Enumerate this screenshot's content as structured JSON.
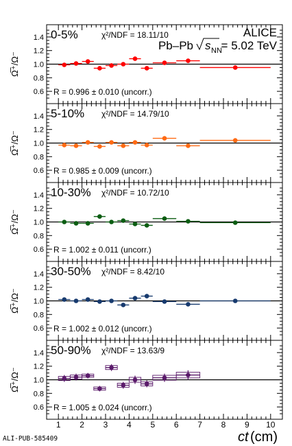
{
  "figure": {
    "experiment_label": "ALICE",
    "system_label": "Pb–Pb",
    "energy_label": "= 5.02 TeV",
    "sqrt_label": "s",
    "sqrt_sub": "NN",
    "pub_id": "ALI-PUB-585409",
    "xaxis_title_italic": "ct",
    "xaxis_title_unit": " (cm)",
    "yaxis_title": "Ω̅⁺/Ω⁻",
    "xticks": [
      "1",
      "2",
      "3",
      "4",
      "5",
      "6",
      "7",
      "8",
      "9",
      "10"
    ],
    "yticks": [
      "0.6",
      "0.8",
      "1.0",
      "1.2",
      "1.4"
    ],
    "colors": {
      "0-5%": "#ff0000",
      "5-10%": "#ff6a13",
      "10-30%": "#0b5d12",
      "30-50%": "#173a6e",
      "50-90%": "#5a1a6a"
    }
  },
  "chart_data": [
    {
      "type": "scatter",
      "panel": "0-5%",
      "centrality": "0-5%",
      "chi2_label": "χ²/NDF = 18.11/10",
      "r_label": "R = 0.996 ± 0.010 (uncorr.)",
      "color": "#ff0000",
      "xlim": [
        0.5,
        10.5
      ],
      "ylim": [
        0.5,
        1.5
      ],
      "reference_line": 1.0,
      "points": [
        {
          "x": 1.25,
          "xerr": 0.25,
          "y": 0.99,
          "yerr": 0.02
        },
        {
          "x": 1.75,
          "xerr": 0.25,
          "y": 1.01,
          "yerr": 0.02
        },
        {
          "x": 2.25,
          "xerr": 0.25,
          "y": 1.04,
          "yerr": 0.02
        },
        {
          "x": 2.75,
          "xerr": 0.25,
          "y": 0.94,
          "yerr": 0.02
        },
        {
          "x": 3.25,
          "xerr": 0.25,
          "y": 0.98,
          "yerr": 0.02
        },
        {
          "x": 3.75,
          "xerr": 0.25,
          "y": 1.0,
          "yerr": 0.02
        },
        {
          "x": 4.25,
          "xerr": 0.25,
          "y": 1.08,
          "yerr": 0.02
        },
        {
          "x": 4.75,
          "xerr": 0.25,
          "y": 0.94,
          "yerr": 0.02
        },
        {
          "x": 5.5,
          "xerr": 0.5,
          "y": 1.02,
          "yerr": 0.02
        },
        {
          "x": 6.5,
          "xerr": 0.5,
          "y": 1.05,
          "yerr": 0.03
        },
        {
          "x": 8.5,
          "xerr": 1.5,
          "y": 0.95,
          "yerr": 0.03
        }
      ]
    },
    {
      "type": "scatter",
      "panel": "5-10%",
      "centrality": "5-10%",
      "chi2_label": "χ²/NDF = 14.79/10",
      "r_label": "R = 0.985 ± 0.009 (uncorr.)",
      "color": "#ff6a13",
      "xlim": [
        0.5,
        10.5
      ],
      "ylim": [
        0.5,
        1.5
      ],
      "reference_line": 1.0,
      "points": [
        {
          "x": 1.25,
          "xerr": 0.25,
          "y": 0.97,
          "yerr": 0.02
        },
        {
          "x": 1.75,
          "xerr": 0.25,
          "y": 0.96,
          "yerr": 0.02
        },
        {
          "x": 2.25,
          "xerr": 0.25,
          "y": 1.01,
          "yerr": 0.02
        },
        {
          "x": 2.75,
          "xerr": 0.25,
          "y": 0.95,
          "yerr": 0.02
        },
        {
          "x": 3.25,
          "xerr": 0.25,
          "y": 1.01,
          "yerr": 0.02
        },
        {
          "x": 3.75,
          "xerr": 0.25,
          "y": 0.96,
          "yerr": 0.02
        },
        {
          "x": 4.25,
          "xerr": 0.25,
          "y": 1.01,
          "yerr": 0.02
        },
        {
          "x": 4.75,
          "xerr": 0.25,
          "y": 0.97,
          "yerr": 0.02
        },
        {
          "x": 5.5,
          "xerr": 0.5,
          "y": 1.07,
          "yerr": 0.02
        },
        {
          "x": 6.5,
          "xerr": 0.5,
          "y": 0.96,
          "yerr": 0.02
        },
        {
          "x": 8.5,
          "xerr": 1.5,
          "y": 1.04,
          "yerr": 0.03
        }
      ]
    },
    {
      "type": "scatter",
      "panel": "10-30%",
      "centrality": "10-30%",
      "chi2_label": "χ²/NDF = 10.72/10",
      "r_label": "R = 1.002 ± 0.011 (uncorr.)",
      "color": "#0b5d12",
      "xlim": [
        0.5,
        10.5
      ],
      "ylim": [
        0.5,
        1.5
      ],
      "reference_line": 1.0,
      "points": [
        {
          "x": 1.25,
          "xerr": 0.25,
          "y": 1.0,
          "yerr": 0.02
        },
        {
          "x": 1.75,
          "xerr": 0.25,
          "y": 0.98,
          "yerr": 0.02
        },
        {
          "x": 2.25,
          "xerr": 0.25,
          "y": 0.98,
          "yerr": 0.02
        },
        {
          "x": 2.75,
          "xerr": 0.25,
          "y": 1.08,
          "yerr": 0.02
        },
        {
          "x": 3.25,
          "xerr": 0.25,
          "y": 1.0,
          "yerr": 0.02
        },
        {
          "x": 3.75,
          "xerr": 0.25,
          "y": 1.02,
          "yerr": 0.02
        },
        {
          "x": 4.25,
          "xerr": 0.25,
          "y": 0.97,
          "yerr": 0.02
        },
        {
          "x": 4.75,
          "xerr": 0.25,
          "y": 0.95,
          "yerr": 0.02
        },
        {
          "x": 5.5,
          "xerr": 0.5,
          "y": 1.05,
          "yerr": 0.02
        },
        {
          "x": 6.5,
          "xerr": 0.5,
          "y": 1.01,
          "yerr": 0.03
        },
        {
          "x": 8.5,
          "xerr": 1.5,
          "y": 0.99,
          "yerr": 0.03
        }
      ]
    },
    {
      "type": "scatter",
      "panel": "30-50%",
      "centrality": "30-50%",
      "chi2_label": "χ²/NDF = 8.42/10",
      "r_label": "R = 1.002 ± 0.012 (uncorr.)",
      "color": "#173a6e",
      "xlim": [
        0.5,
        10.5
      ],
      "ylim": [
        0.5,
        1.5
      ],
      "reference_line": 1.0,
      "points": [
        {
          "x": 1.25,
          "xerr": 0.25,
          "y": 1.02,
          "yerr": 0.02
        },
        {
          "x": 1.75,
          "xerr": 0.25,
          "y": 1.0,
          "yerr": 0.02
        },
        {
          "x": 2.25,
          "xerr": 0.25,
          "y": 1.02,
          "yerr": 0.02
        },
        {
          "x": 2.75,
          "xerr": 0.25,
          "y": 0.99,
          "yerr": 0.02
        },
        {
          "x": 3.25,
          "xerr": 0.25,
          "y": 1.0,
          "yerr": 0.02
        },
        {
          "x": 3.75,
          "xerr": 0.25,
          "y": 0.94,
          "yerr": 0.02
        },
        {
          "x": 4.25,
          "xerr": 0.25,
          "y": 1.04,
          "yerr": 0.02
        },
        {
          "x": 4.75,
          "xerr": 0.25,
          "y": 1.07,
          "yerr": 0.02
        },
        {
          "x": 5.5,
          "xerr": 0.5,
          "y": 0.99,
          "yerr": 0.02
        },
        {
          "x": 6.5,
          "xerr": 0.5,
          "y": 0.95,
          "yerr": 0.03
        },
        {
          "x": 8.5,
          "xerr": 1.5,
          "y": 1.0,
          "yerr": 0.03
        }
      ]
    },
    {
      "type": "scatter",
      "panel": "50-90%",
      "centrality": "50-90%",
      "chi2_label": "χ²/NDF = 13.63/9",
      "r_label": "R = 1.005 ± 0.024 (uncorr.)",
      "color": "#5a1a6a",
      "xlim": [
        0.5,
        10.5
      ],
      "ylim": [
        0.5,
        1.5
      ],
      "reference_line": 1.0,
      "points": [
        {
          "x": 1.25,
          "xerr": 0.25,
          "y": 1.02,
          "yerr": 0.05
        },
        {
          "x": 1.75,
          "xerr": 0.25,
          "y": 1.04,
          "yerr": 0.05
        },
        {
          "x": 2.25,
          "xerr": 0.25,
          "y": 1.06,
          "yerr": 0.04
        },
        {
          "x": 2.75,
          "xerr": 0.25,
          "y": 0.87,
          "yerr": 0.04
        },
        {
          "x": 3.25,
          "xerr": 0.25,
          "y": 1.18,
          "yerr": 0.05
        },
        {
          "x": 3.75,
          "xerr": 0.25,
          "y": 0.92,
          "yerr": 0.05
        },
        {
          "x": 4.25,
          "xerr": 0.25,
          "y": 1.0,
          "yerr": 0.06
        },
        {
          "x": 4.75,
          "xerr": 0.25,
          "y": 0.94,
          "yerr": 0.05
        },
        {
          "x": 5.5,
          "xerr": 0.5,
          "y": 1.03,
          "yerr": 0.06
        },
        {
          "x": 6.5,
          "xerr": 0.5,
          "y": 1.07,
          "yerr": 0.07
        }
      ]
    }
  ]
}
